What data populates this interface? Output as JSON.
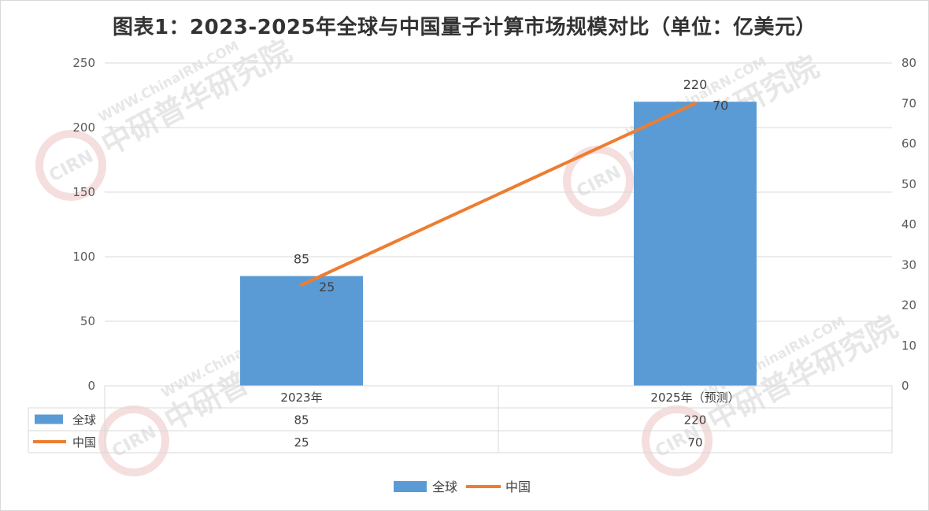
{
  "title": "图表1：2023-2025年全球与中国量子计算市场规模对比（单位：亿美元）",
  "watermark": {
    "cn": "中研普华研究院",
    "en": "WWW.ChinaIRN.COM",
    "logo": "CIRN"
  },
  "colors": {
    "bar": "#5b9bd5",
    "line": "#ed7d31",
    "grid": "#d9d9d9",
    "text": "#404040"
  },
  "chart_data": {
    "type": "bar",
    "categories": [
      "2023年",
      "2025年（预测）"
    ],
    "series": [
      {
        "name": "全球",
        "type": "bar",
        "axis": "left",
        "values": [
          85,
          220
        ]
      },
      {
        "name": "中国",
        "type": "line",
        "axis": "right",
        "values": [
          25,
          70
        ]
      }
    ],
    "y_left": {
      "range": [
        0,
        250
      ],
      "ticks": [
        0,
        50,
        100,
        150,
        200,
        250
      ]
    },
    "y_right": {
      "range": [
        0,
        80
      ],
      "ticks": [
        0,
        10,
        20,
        30,
        40,
        50,
        60,
        70,
        80
      ]
    },
    "grid": true,
    "data_table": true,
    "legend_position": "bottom"
  }
}
